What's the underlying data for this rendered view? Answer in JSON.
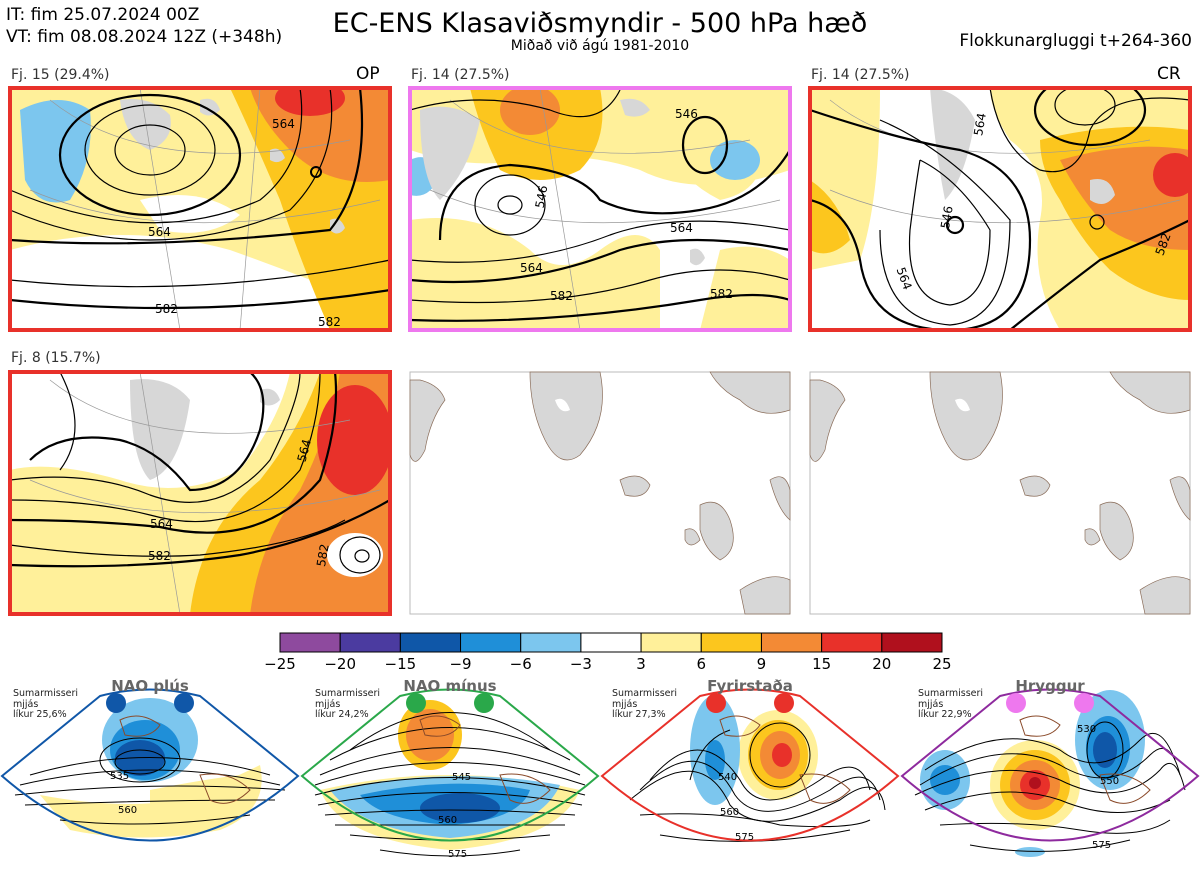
{
  "header": {
    "it_line": "IT: fim 25.07.2024 00Z",
    "vt_line": "VT: fim 08.08.2024 12Z  (+348h)",
    "title": "EC-ENS Klasaviðsmyndir - 500 hPa hæð",
    "subtitle": "Miðað við ágú 1981-2010",
    "window": "Flokkunargluggi t+264-360"
  },
  "panels": [
    {
      "label": "Fj. 15 (29.4%)",
      "tag": "OP",
      "border": "#e8312a",
      "contours": [
        "564",
        "582",
        "582",
        "564"
      ]
    },
    {
      "label": "Fj. 14 (27.5%)",
      "tag": "",
      "border": "#ee78ee",
      "contours": [
        "546",
        "546",
        "564",
        "582",
        "564",
        "582"
      ]
    },
    {
      "label": "Fj. 14 (27.5%)",
      "tag": "CR",
      "border": "#e8312a",
      "contours": [
        "564",
        "546",
        "564",
        "582"
      ]
    },
    {
      "label": "Fj. 8 (15.7%)",
      "tag": "",
      "border": "#e8312a",
      "contours": [
        "564",
        "582",
        "582",
        "564"
      ]
    }
  ],
  "colorbar": {
    "ticks": [
      "−25",
      "−20",
      "−15",
      "−9",
      "−6",
      "−3",
      "3",
      "6",
      "9",
      "15",
      "20",
      "25"
    ],
    "colors": [
      "#8e4a9e",
      "#4b3ba0",
      "#0f57a8",
      "#1f8fd8",
      "#7cc6ee",
      "#ffffff",
      "#fff09a",
      "#fcc61e",
      "#f38a35",
      "#e8312a",
      "#b0101d"
    ]
  },
  "regimes": [
    {
      "name": "NAO plús",
      "info": [
        "Sumarmisseri",
        "mjjás",
        "líkur 25,6%"
      ],
      "edge": "#1057a8",
      "dots": "#1057a8",
      "contours": [
        "535",
        "560"
      ]
    },
    {
      "name": "NAO mínus",
      "info": [
        "Sumarmisseri",
        "mjjás",
        "líkur 24,2%"
      ],
      "edge": "#2aa84a",
      "dots": "#2aa84a",
      "contours": [
        "545",
        "560",
        "575"
      ]
    },
    {
      "name": "Fyrirstaða",
      "info": [
        "Sumarmisseri",
        "mjjás",
        "líkur 27,3%"
      ],
      "edge": "#e8312a",
      "dots": "#e8312a",
      "contours": [
        "540",
        "560",
        "575"
      ]
    },
    {
      "name": "Hryggur",
      "info": [
        "Sumarmisseri",
        "mjjás",
        "líkur 22,9%"
      ],
      "edge": "#8e2a9e",
      "dots": "#ee78ee",
      "contours": [
        "530",
        "550",
        "575"
      ]
    }
  ]
}
